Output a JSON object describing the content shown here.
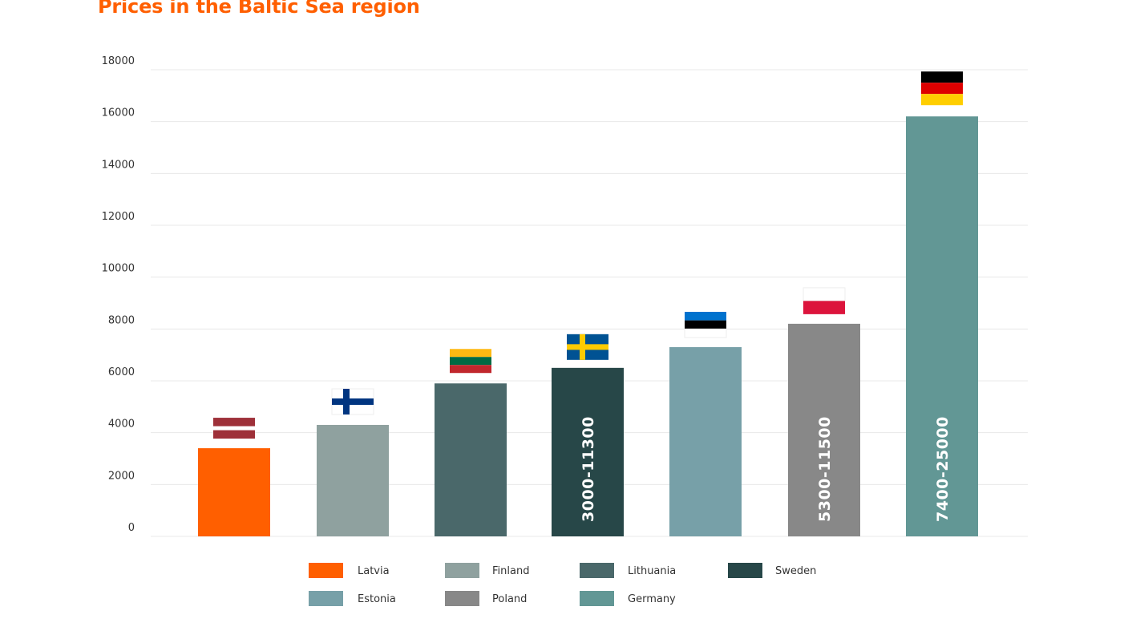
{
  "chart_data": {
    "type": "bar",
    "title": "Prices in the Baltic Sea region",
    "xlabel": "",
    "ylabel": "",
    "ylim": [
      0,
      18000
    ],
    "yticks": [
      0,
      2000,
      4000,
      6000,
      8000,
      10000,
      12000,
      14000,
      16000,
      18000
    ],
    "grid": true,
    "legend_position": "bottom",
    "categories": [
      "Latvia",
      "Finland",
      "Lithuania",
      "Sweden",
      "Estonia",
      "Poland",
      "Germany"
    ],
    "values": [
      3400,
      4300,
      5900,
      6500,
      7300,
      8200,
      16200
    ],
    "colors": [
      "#ff5f00",
      "#8fa19f",
      "#4a686a",
      "#274748",
      "#77a0a8",
      "#888888",
      "#629795"
    ],
    "bar_labels": [
      "",
      "",
      "",
      "3000-11300",
      "",
      "5300-11500",
      "7400-25000"
    ],
    "flags": [
      "latvia-flag",
      "finland-flag",
      "lithuania-flag",
      "sweden-flag",
      "estonia-flag",
      "poland-flag",
      "germany-flag"
    ]
  }
}
